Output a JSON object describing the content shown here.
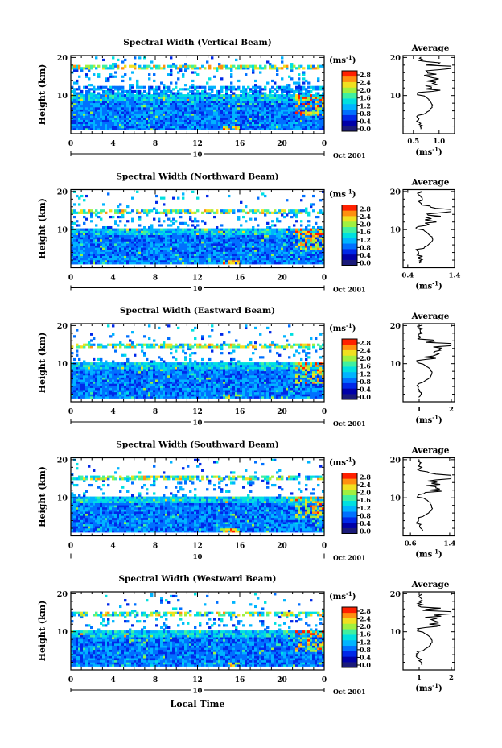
{
  "chart_data": {
    "type": "heatmap",
    "colorbar": {
      "unit": "(ms",
      "unit_exp": "-1",
      "unit_close": ")",
      "ticks": [
        "0.0",
        "0.4",
        "0.8",
        "1.2",
        "1.6",
        "2.0",
        "2.4",
        "2.8"
      ],
      "colors": [
        "#1a1a7a",
        "#0000a8",
        "#0028e8",
        "#0070ff",
        "#00b4ff",
        "#00e0e0",
        "#40f0a0",
        "#a0f040",
        "#f0e020",
        "#ff9010",
        "#ff2000"
      ]
    },
    "heatmap_xlabel_ticks": [
      "0",
      "4",
      "8",
      "12",
      "16",
      "20",
      "0"
    ],
    "heatmap_y_ticks": [
      "20",
      "10"
    ],
    "date_mark": "10",
    "date_label": "Oct 2001",
    "bottom_xlabel": "Local Time",
    "ylabel": "Height (km)",
    "profile_title": "Average",
    "profile_xlabel": "(ms",
    "profile_xlabel_exp": "-1",
    "profile_xlabel_close": ")",
    "panels": [
      {
        "title": "Spectral Width (Vertical Beam)",
        "profile_xticks": [
          "0.5",
          "1.0"
        ],
        "profile_xrange": [
          0.3,
          1.3
        ],
        "tropopause": 17.5,
        "seed": 11
      },
      {
        "title": "Spectral Width (Northward Beam)",
        "profile_xticks": [
          "0.4",
          "1.4"
        ],
        "profile_xrange": [
          0.3,
          1.4
        ],
        "tropopause": 15.0,
        "seed": 23
      },
      {
        "title": "Spectral Width (Eastward Beam)",
        "profile_xticks": [
          "1",
          "2"
        ],
        "profile_xrange": [
          0.5,
          2.1
        ],
        "tropopause": 15.0,
        "seed": 37
      },
      {
        "title": "Spectral Width (Southward Beam)",
        "profile_xticks": [
          "0.6",
          "1.4"
        ],
        "profile_xrange": [
          0.45,
          1.5
        ],
        "tropopause": 15.5,
        "seed": 51
      },
      {
        "title": "Spectral Width (Westward Beam)",
        "profile_xticks": [
          "1",
          "2"
        ],
        "profile_xrange": [
          0.5,
          2.1
        ],
        "tropopause": 15.0,
        "seed": 73
      }
    ]
  }
}
